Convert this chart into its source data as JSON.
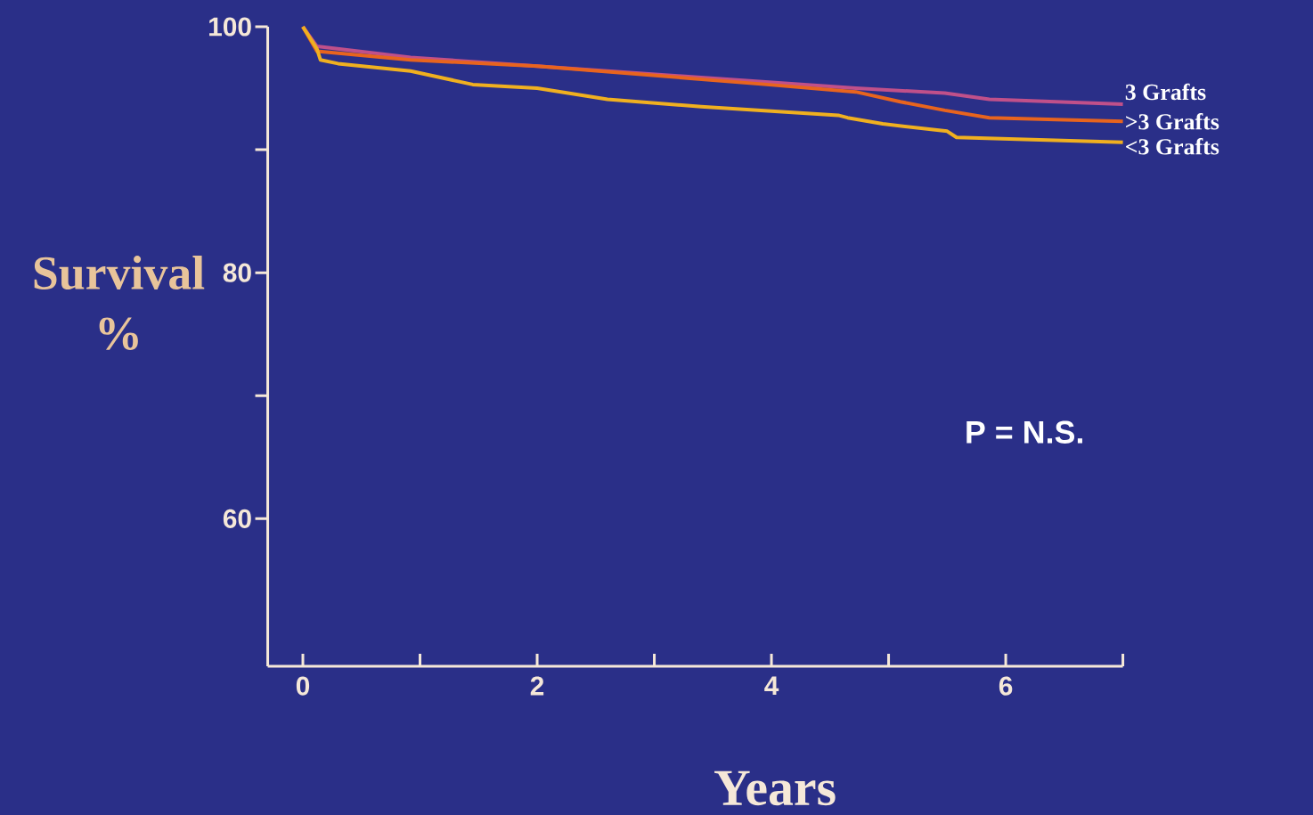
{
  "chart_data": {
    "type": "line",
    "xlabel": "Years",
    "ylabel": "Survival %",
    "xlim": [
      -0.3,
      7
    ],
    "ylim": [
      48,
      100
    ],
    "xticks": [
      0,
      {
        "value": 1,
        "label": null
      },
      2,
      {
        "value": 3,
        "label": null
      },
      4,
      {
        "value": 5,
        "label": null
      },
      6,
      {
        "value": 7,
        "label": null
      }
    ],
    "yticks": [
      60,
      {
        "value": 70,
        "label": null
      },
      80,
      {
        "value": 90,
        "label": null
      },
      100
    ],
    "grid": false,
    "legend": false,
    "marker": "none",
    "line_style": "solid",
    "annotations": [
      "P = N.S."
    ],
    "series": [
      {
        "name": "3 Grafts",
        "color": "#c0508a",
        "x": [
          0,
          0.12,
          0.92,
          2,
          3.2,
          4.72,
          5.48,
          5.86,
          7
        ],
        "values": [
          100,
          98.4,
          97.5,
          96.8,
          96.0,
          95.0,
          94.6,
          94.1,
          93.7
        ]
      },
      {
        "name": ">3 Grafts",
        "color": "#e8641e",
        "x": [
          0,
          0.12,
          0.92,
          2,
          3.96,
          4.72,
          5.1,
          5.48,
          5.86,
          7
        ],
        "values": [
          100,
          98.0,
          97.3,
          96.8,
          95.3,
          94.7,
          93.9,
          93.2,
          92.6,
          92.3
        ]
      },
      {
        "name": "<3 Grafts",
        "color": "#f0b020",
        "x": [
          0,
          0.12,
          0.15,
          0.3,
          0.92,
          1.45,
          2,
          2.6,
          3.4,
          4.57,
          4.65,
          4.95,
          5.5,
          5.58,
          7
        ],
        "values": [
          100,
          98.2,
          97.3,
          97.0,
          96.4,
          95.3,
          95.0,
          94.1,
          93.5,
          92.8,
          92.6,
          92.1,
          91.5,
          91.0,
          90.6
        ]
      }
    ]
  }
}
